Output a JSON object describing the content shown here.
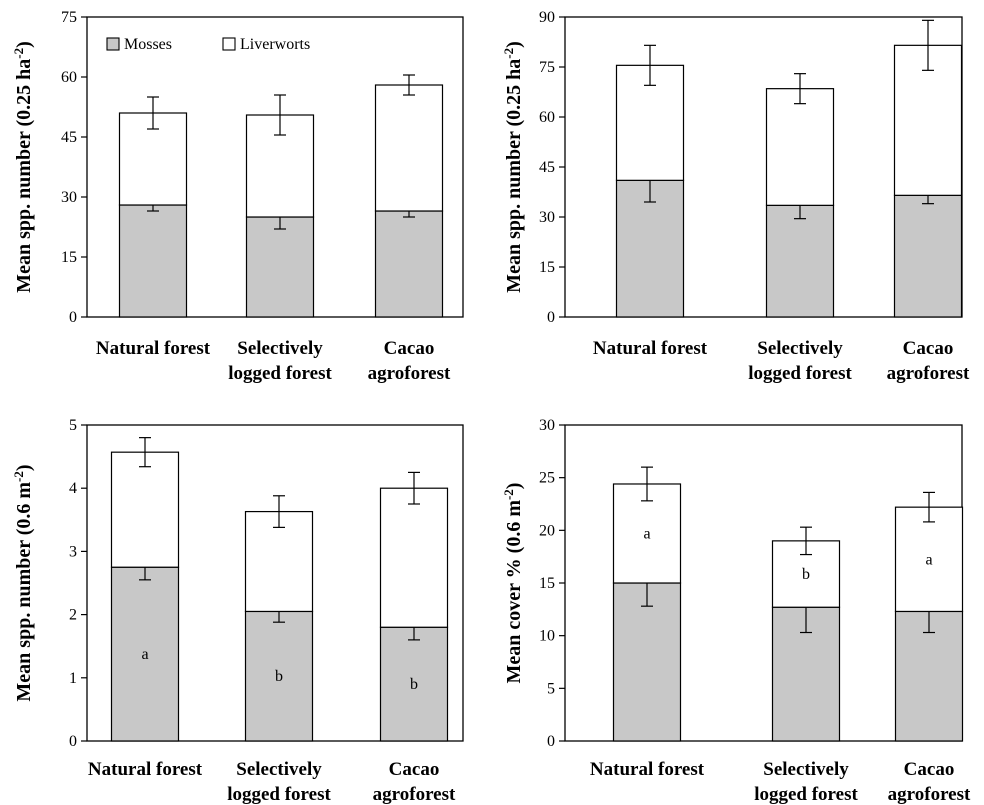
{
  "colors": {
    "mosses": "#c8c8c8",
    "liverworts": "#ffffff",
    "axis": "#000000"
  },
  "chart_data": [
    {
      "type": "bar",
      "stacked": true,
      "categories": [
        [
          "Natural forest"
        ],
        [
          "Selectively",
          "logged forest"
        ],
        [
          "Cacao",
          "agroforest"
        ]
      ],
      "ylabel": "Mean spp. number (0.25 ha",
      "ylabel_sup": "-2",
      "ylabel_tail": ")",
      "ylim": [
        0,
        75
      ],
      "yticks": [
        "0",
        "15",
        "30",
        "45",
        "60",
        "75"
      ],
      "legend": {
        "position": "top-left",
        "entries": [
          "Mosses",
          "Liverworts"
        ]
      },
      "series": [
        {
          "name": "Mosses",
          "values": [
            28,
            25,
            26.5
          ],
          "err": [
            1.5,
            3,
            1.5
          ]
        },
        {
          "name": "Liverworts",
          "values": [
            23,
            25.5,
            31.5
          ],
          "err": [
            4,
            5,
            2.5
          ]
        }
      ],
      "annotations": []
    },
    {
      "type": "bar",
      "stacked": true,
      "categories": [
        [
          "Natural forest"
        ],
        [
          "Selectively",
          "logged forest"
        ],
        [
          "Cacao",
          "agroforest"
        ]
      ],
      "ylabel": "Mean spp. number (0.25 ha",
      "ylabel_sup": "-2",
      "ylabel_tail": ")",
      "ylim": [
        0,
        90
      ],
      "yticks": [
        "0",
        "15",
        "30",
        "45",
        "60",
        "75",
        "90"
      ],
      "series": [
        {
          "name": "Mosses",
          "values": [
            41,
            33.5,
            36.5
          ],
          "err": [
            6.5,
            4,
            2.5
          ]
        },
        {
          "name": "Liverworts",
          "values": [
            34.5,
            35,
            45
          ],
          "err": [
            6,
            4.5,
            7.5
          ]
        }
      ],
      "annotations": []
    },
    {
      "type": "bar",
      "stacked": true,
      "categories": [
        [
          "Natural forest"
        ],
        [
          "Selectively",
          "logged forest"
        ],
        [
          "Cacao",
          "agroforest"
        ]
      ],
      "ylabel": "Mean spp. number (0.6 m",
      "ylabel_sup": "-2",
      "ylabel_tail": ")",
      "ylim": [
        0,
        5
      ],
      "yticks": [
        "0",
        "1",
        "2",
        "3",
        "4",
        "5"
      ],
      "series": [
        {
          "name": "Mosses",
          "values": [
            2.75,
            2.05,
            1.8
          ],
          "err": [
            0.2,
            0.17,
            0.2
          ]
        },
        {
          "name": "Liverworts",
          "values": [
            1.82,
            1.58,
            2.2
          ],
          "err": [
            0.23,
            0.25,
            0.25
          ]
        }
      ],
      "annotations": [
        {
          "series": 0,
          "index": 0,
          "text": "a"
        },
        {
          "series": 0,
          "index": 1,
          "text": "b"
        },
        {
          "series": 0,
          "index": 2,
          "text": "b"
        }
      ]
    },
    {
      "type": "bar",
      "stacked": true,
      "categories": [
        [
          "Natural forest"
        ],
        [
          "Selectively",
          "logged forest"
        ],
        [
          "Cacao",
          "agroforest"
        ]
      ],
      "ylabel": "Mean cover % (0.6 m",
      "ylabel_sup": "-2",
      "ylabel_tail": ")",
      "ylim": [
        0,
        30
      ],
      "yticks": [
        "0",
        "5",
        "10",
        "15",
        "20",
        "25",
        "30"
      ],
      "series": [
        {
          "name": "Mosses",
          "values": [
            15,
            12.7,
            12.3
          ],
          "err": [
            2.2,
            2.4,
            2.0
          ]
        },
        {
          "name": "Liverworts",
          "values": [
            9.4,
            6.3,
            9.9
          ],
          "err": [
            1.6,
            1.3,
            1.4
          ]
        }
      ],
      "annotations": [
        {
          "series": 1,
          "index": 0,
          "text": "a"
        },
        {
          "series": 1,
          "index": 1,
          "text": "b"
        },
        {
          "series": 1,
          "index": 2,
          "text": "a"
        }
      ]
    }
  ]
}
